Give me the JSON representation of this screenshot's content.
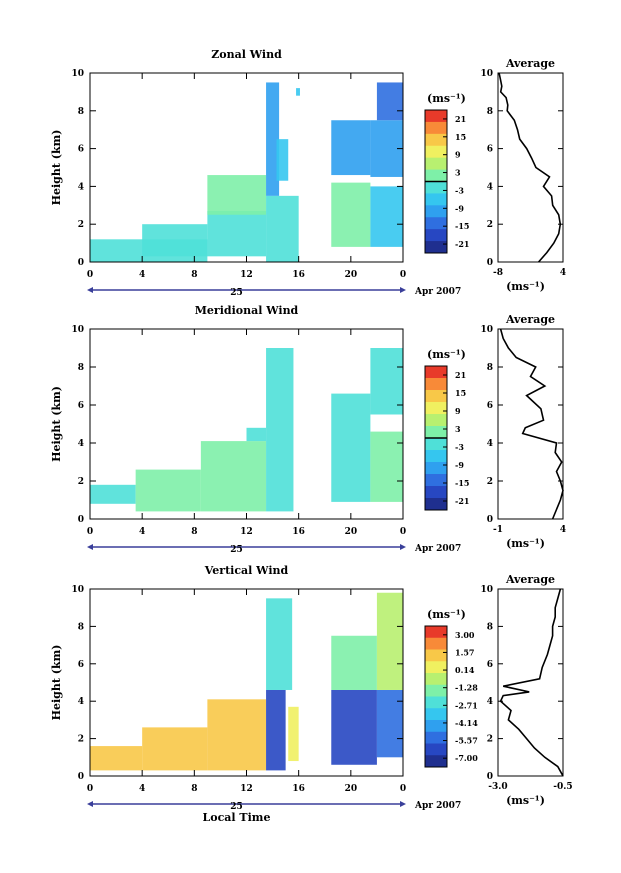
{
  "colors": {
    "palette": [
      "#1f2f8f",
      "#2747c2",
      "#2f6fe0",
      "#2fa0ef",
      "#35c6ef",
      "#4fe0d8",
      "#7ef0a8",
      "#b8f070",
      "#f0f060",
      "#f8c848",
      "#f88a38",
      "#e83a2a"
    ],
    "axis": "#000000",
    "time_bar": "#3a3f9a",
    "noise_line": "#000000"
  },
  "time_axis": {
    "label": "Local Time",
    "date_label": "Apr 2007",
    "day_label": "25"
  },
  "chart_data": [
    {
      "type": "heatmap",
      "title": "Zonal Wind",
      "xlabel": "",
      "ylabel": "Height (km)",
      "xticks": [
        "0",
        "4",
        "8",
        "12",
        "16",
        "20",
        "0"
      ],
      "yticks": [
        "0",
        "2",
        "4",
        "6",
        "8",
        "10"
      ],
      "xlim": [
        0,
        24
      ],
      "ylim": [
        0,
        10
      ],
      "colorbar": {
        "unit": "(ms⁻¹)",
        "ticks": [
          "21",
          "15",
          "9",
          "3",
          "-3",
          "-9",
          "-15",
          "-21"
        ],
        "range": [
          -24,
          24
        ],
        "zero_line": true
      },
      "data_regions": [
        {
          "x": [
            0,
            9
          ],
          "y": [
            0,
            1.2
          ],
          "v": -4
        },
        {
          "x": [
            4,
            9
          ],
          "y": [
            0.3,
            2
          ],
          "v": -2
        },
        {
          "x": [
            9,
            13.5
          ],
          "y": [
            0.3,
            2.7
          ],
          "v": -1
        },
        {
          "x": [
            9,
            13.5
          ],
          "y": [
            2.5,
            4.6
          ],
          "v": 0
        },
        {
          "x": [
            13.5,
            16
          ],
          "y": [
            0,
            3.5
          ],
          "v": -2
        },
        {
          "x": [
            13.5,
            14.5
          ],
          "y": [
            3.5,
            9.5
          ],
          "v": -12
        },
        {
          "x": [
            14.3,
            15.2
          ],
          "y": [
            4.3,
            6.5
          ],
          "v": -8
        },
        {
          "x": [
            15.8,
            16.1
          ],
          "y": [
            8.8,
            9.2
          ],
          "v": -8
        },
        {
          "x": [
            18.5,
            21.5
          ],
          "y": [
            0.8,
            4.2
          ],
          "v": 2
        },
        {
          "x": [
            18.5,
            21.5
          ],
          "y": [
            4.6,
            7.5
          ],
          "v": -9
        },
        {
          "x": [
            21.5,
            24
          ],
          "y": [
            0.8,
            4
          ],
          "v": -6
        },
        {
          "x": [
            21.5,
            24
          ],
          "y": [
            4.5,
            7.5
          ],
          "v": -9
        },
        {
          "x": [
            22,
            24
          ],
          "y": [
            7.5,
            9.5
          ],
          "v": -16
        }
      ],
      "average_profile": {
        "title": "Average",
        "xlabel": "(ms⁻¹)",
        "xticks": [
          "-8",
          "4"
        ],
        "xlim": [
          -8,
          4
        ],
        "yticks": [
          "0",
          "2",
          "4",
          "6",
          "8",
          "10"
        ],
        "ylim": [
          0,
          10
        ],
        "height": [
          0,
          0.5,
          1,
          1.5,
          2,
          2.5,
          3,
          3.5,
          4,
          4.5,
          5,
          5.5,
          6,
          6.5,
          7,
          7.5,
          8,
          8.3,
          8.7,
          9,
          9.3,
          9.6,
          10
        ],
        "wind": [
          -0.5,
          1,
          2.3,
          3.2,
          3.5,
          3.2,
          2.1,
          1.9,
          0.4,
          1.5,
          -1,
          -1.8,
          -2.7,
          -4,
          -4.4,
          -5,
          -6.3,
          -6.2,
          -6.5,
          -7.5,
          -7.3,
          -7.5,
          -7.8
        ]
      }
    },
    {
      "type": "heatmap",
      "title": "Meridional Wind",
      "xlabel": "",
      "ylabel": "Height (km)",
      "xticks": [
        "0",
        "4",
        "8",
        "12",
        "16",
        "20",
        "0"
      ],
      "yticks": [
        "0",
        "2",
        "4",
        "6",
        "8",
        "10"
      ],
      "xlim": [
        0,
        24
      ],
      "ylim": [
        0,
        10
      ],
      "colorbar": {
        "unit": "(ms⁻¹)",
        "ticks": [
          "21",
          "15",
          "9",
          "3",
          "-3",
          "-9",
          "-15",
          "-21"
        ],
        "range": [
          -24,
          24
        ],
        "zero_line": true
      },
      "data_regions": [
        {
          "x": [
            0,
            3.5
          ],
          "y": [
            0.8,
            1.8
          ],
          "v": -2
        },
        {
          "x": [
            3.5,
            8.5
          ],
          "y": [
            0.4,
            2.6
          ],
          "v": 0
        },
        {
          "x": [
            8.5,
            13.5
          ],
          "y": [
            0.4,
            4.1
          ],
          "v": 1
        },
        {
          "x": [
            12,
            13.5
          ],
          "y": [
            4.1,
            4.8
          ],
          "v": -2
        },
        {
          "x": [
            13.5,
            15.6
          ],
          "y": [
            0.4,
            9
          ],
          "v": -2
        },
        {
          "x": [
            18.5,
            21.5
          ],
          "y": [
            0.9,
            6.6
          ],
          "v": -3
        },
        {
          "x": [
            21.5,
            24
          ],
          "y": [
            0.9,
            4.6
          ],
          "v": 0
        },
        {
          "x": [
            21.5,
            24
          ],
          "y": [
            5.5,
            9
          ],
          "v": -4
        }
      ],
      "average_profile": {
        "title": "Average",
        "xlabel": "(ms⁻¹)",
        "xticks": [
          "-1",
          "4"
        ],
        "xlim": [
          -1,
          4
        ],
        "yticks": [
          "0",
          "2",
          "4",
          "6",
          "8",
          "10"
        ],
        "ylim": [
          0,
          10
        ],
        "height": [
          0,
          0.5,
          1,
          1.5,
          2,
          2.5,
          3,
          3.5,
          4,
          4.5,
          4.8,
          5.2,
          5.8,
          6.5,
          7,
          7.5,
          8,
          8.5,
          9,
          9.5,
          10
        ],
        "wind": [
          3.2,
          3.5,
          3.8,
          4,
          3.8,
          3.5,
          3.9,
          3.4,
          3.5,
          0.9,
          1.1,
          2.5,
          2.3,
          1.2,
          2.6,
          1.5,
          1.9,
          0.4,
          -0.2,
          -0.6,
          -0.8
        ]
      }
    },
    {
      "type": "heatmap",
      "title": "Vertical Wind",
      "xlabel": "Local Time",
      "ylabel": "Height (km)",
      "xticks": [
        "0",
        "4",
        "8",
        "12",
        "16",
        "20",
        "0"
      ],
      "yticks": [
        "0",
        "2",
        "4",
        "6",
        "8",
        "10"
      ],
      "xlim": [
        0,
        24
      ],
      "ylim": [
        0,
        10
      ],
      "colorbar": {
        "unit": "(ms⁻¹)",
        "ticks": [
          "3.00",
          "1.57",
          "0.14",
          "-1.28",
          "-2.71",
          "-4.14",
          "-5.57",
          "-7.00"
        ],
        "range": [
          -8,
          4
        ],
        "zero_line": false
      },
      "data_regions": [
        {
          "x": [
            0,
            4
          ],
          "y": [
            0.3,
            1.6
          ],
          "v": 1.5
        },
        {
          "x": [
            4,
            9
          ],
          "y": [
            0.3,
            2.6
          ],
          "v": 1.2
        },
        {
          "x": [
            9,
            13.5
          ],
          "y": [
            0.3,
            4.1
          ],
          "v": 1.4
        },
        {
          "x": [
            13.5,
            15
          ],
          "y": [
            0.3,
            4.6
          ],
          "v": -6.8
        },
        {
          "x": [
            13.5,
            15.5
          ],
          "y": [
            4.6,
            9.5
          ],
          "v": -2.5
        },
        {
          "x": [
            15.2,
            16
          ],
          "y": [
            0.8,
            3.7
          ],
          "v": 0.5
        },
        {
          "x": [
            18.5,
            22
          ],
          "y": [
            0.6,
            4.6
          ],
          "v": -6.5
        },
        {
          "x": [
            18.5,
            22
          ],
          "y": [
            4.6,
            7.5
          ],
          "v": -1.4
        },
        {
          "x": [
            22,
            24
          ],
          "y": [
            1,
            4.6
          ],
          "v": -6
        },
        {
          "x": [
            22,
            24
          ],
          "y": [
            4.6,
            9.8
          ],
          "v": -0.8
        }
      ],
      "average_profile": {
        "title": "Average",
        "xlabel": "(ms⁻¹)",
        "xticks": [
          "-3.0",
          "-0.5"
        ],
        "xlim": [
          -3,
          -0.5
        ],
        "yticks": [
          "0",
          "2",
          "4",
          "6",
          "8",
          "10"
        ],
        "ylim": [
          0,
          10
        ],
        "height": [
          0,
          0.5,
          1,
          1.5,
          2,
          2.5,
          3,
          3.5,
          4,
          4.3,
          4.5,
          4.8,
          5.2,
          5.8,
          6.5,
          7,
          7.5,
          8,
          8.5,
          9,
          9.5,
          10
        ],
        "wind": [
          -0.5,
          -0.7,
          -1.2,
          -1.6,
          -1.9,
          -2.2,
          -2.6,
          -2.5,
          -2.9,
          -2.8,
          -1.8,
          -2.8,
          -1.4,
          -1.3,
          -1.1,
          -1.0,
          -0.9,
          -0.9,
          -0.8,
          -0.8,
          -0.7,
          -0.6
        ]
      }
    }
  ]
}
